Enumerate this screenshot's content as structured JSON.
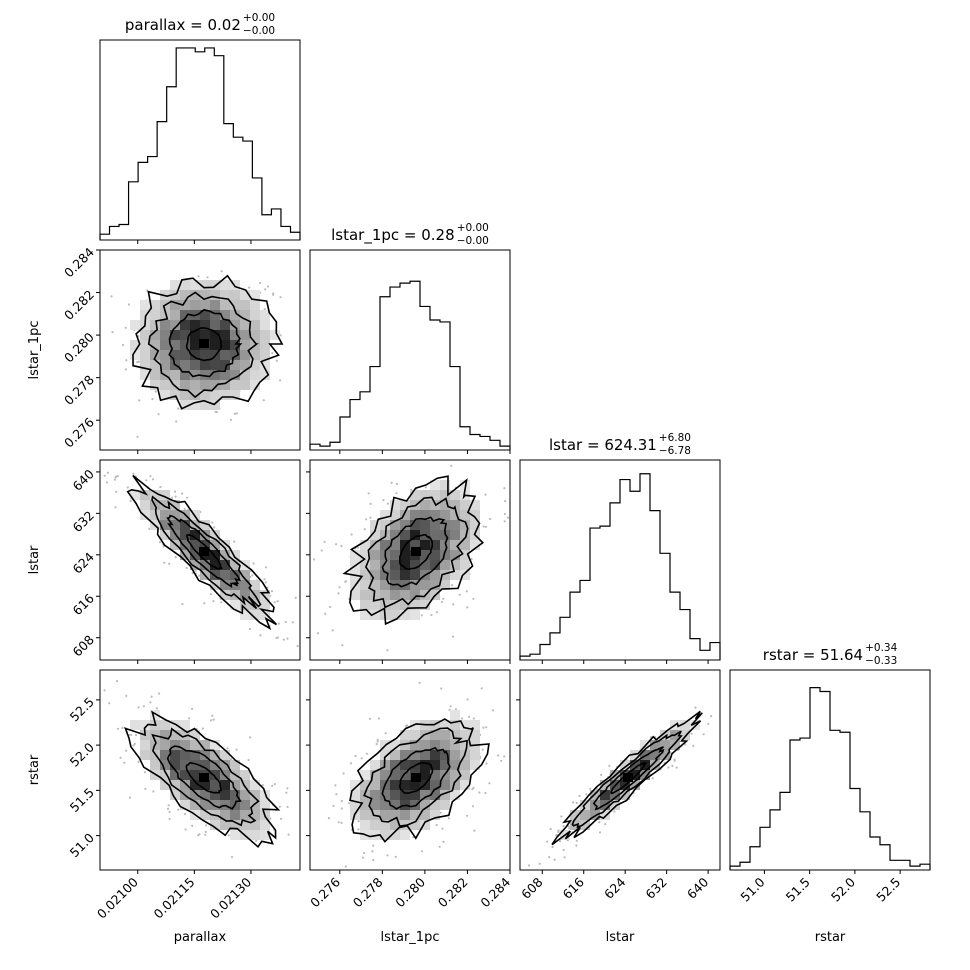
{
  "chart_data": {
    "type": "corner",
    "parameters": [
      "parallax",
      "lstar_1pc",
      "lstar",
      "rstar"
    ],
    "titles": [
      {
        "param": "parallax",
        "median": "0.02",
        "plus": "+0.00",
        "minus": "−0.00"
      },
      {
        "param": "lstar_1pc",
        "median": "0.28",
        "plus": "+0.00",
        "minus": "−0.00"
      },
      {
        "param": "lstar",
        "median": "624.31",
        "plus": "+6.80",
        "minus": "−6.78"
      },
      {
        "param": "rstar",
        "median": "51.64",
        "plus": "+0.34",
        "minus": "−0.33"
      }
    ],
    "ranges": {
      "parallax": [
        0.0209,
        0.02143
      ],
      "lstar_1pc": [
        0.2746,
        0.284
      ],
      "lstar": [
        603.7,
        642.3
      ],
      "rstar": [
        50.62,
        52.83
      ]
    },
    "ticks": {
      "parallax": [
        {
          "v": 0.021,
          "label": "0.02100"
        },
        {
          "v": 0.02115,
          "label": "0.02115"
        },
        {
          "v": 0.0213,
          "label": "0.02130"
        }
      ],
      "lstar_1pc": [
        {
          "v": 0.276,
          "label": "0.276"
        },
        {
          "v": 0.278,
          "label": "0.278"
        },
        {
          "v": 0.28,
          "label": "0.280"
        },
        {
          "v": 0.282,
          "label": "0.282"
        },
        {
          "v": 0.284,
          "label": "0.284"
        }
      ],
      "lstar": [
        {
          "v": 608,
          "label": "608"
        },
        {
          "v": 616,
          "label": "616"
        },
        {
          "v": 624,
          "label": "624"
        },
        {
          "v": 632,
          "label": "632"
        },
        {
          "v": 640,
          "label": "640"
        }
      ],
      "rstar": [
        {
          "v": 51.0,
          "label": "51.0"
        },
        {
          "v": 51.5,
          "label": "51.5"
        },
        {
          "v": 52.0,
          "label": "52.0"
        },
        {
          "v": 52.5,
          "label": "52.5"
        }
      ]
    },
    "histograms": {
      "parallax": [
        0.03,
        0.07,
        0.08,
        0.3,
        0.4,
        0.43,
        0.61,
        0.79,
        0.99,
        0.99,
        0.97,
        0.99,
        0.95,
        0.6,
        0.53,
        0.51,
        0.32,
        0.13,
        0.16,
        0.07,
        0.04
      ],
      "lstar_1pc": [
        0.03,
        0.02,
        0.04,
        0.17,
        0.26,
        0.3,
        0.43,
        0.79,
        0.84,
        0.86,
        0.87,
        0.74,
        0.67,
        0.66,
        0.43,
        0.12,
        0.08,
        0.07,
        0.05,
        0.02
      ],
      "lstar": [
        0.02,
        0.03,
        0.08,
        0.14,
        0.22,
        0.35,
        0.41,
        0.68,
        0.69,
        0.81,
        0.93,
        0.87,
        0.96,
        0.77,
        0.55,
        0.35,
        0.26,
        0.11,
        0.05,
        0.09
      ],
      "rstar": [
        0.02,
        0.04,
        0.12,
        0.22,
        0.31,
        0.4,
        0.67,
        0.68,
        0.94,
        0.92,
        0.72,
        0.71,
        0.42,
        0.3,
        0.17,
        0.13,
        0.05,
        0.05,
        0.02,
        0.03
      ]
    },
    "correlations": {
      "lstar_1pc|parallax": 0.0,
      "lstar|parallax": -0.9,
      "lstar|lstar_1pc": 0.42,
      "rstar|parallax": -0.7,
      "rstar|lstar_1pc": 0.5,
      "rstar|lstar": 0.95
    },
    "xlabel_note": "",
    "contour_levels": [
      0.393,
      0.865,
      0.989
    ]
  }
}
